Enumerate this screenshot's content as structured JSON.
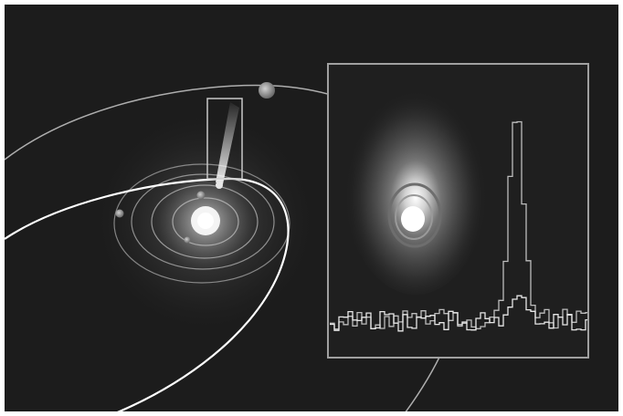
{
  "figure": {
    "background_color": "#1c1c1c",
    "frame_color": "#ffffff",
    "orbit_color": "#c8c8c8",
    "comet_orbit_color": "#ffffff",
    "inset_border_color": "#a0a0a0",
    "spectrum_colors": [
      "#bdbdbd",
      "#e6e6e6"
    ],
    "bodies": [
      "sun",
      "inner-planet",
      "inner-planet",
      "inner-planet",
      "outer-planet",
      "comet"
    ],
    "inset": {
      "left_panel": "comet-coma-image",
      "right_panel": "emission-spectrum",
      "spectrum_series": 2
    }
  }
}
